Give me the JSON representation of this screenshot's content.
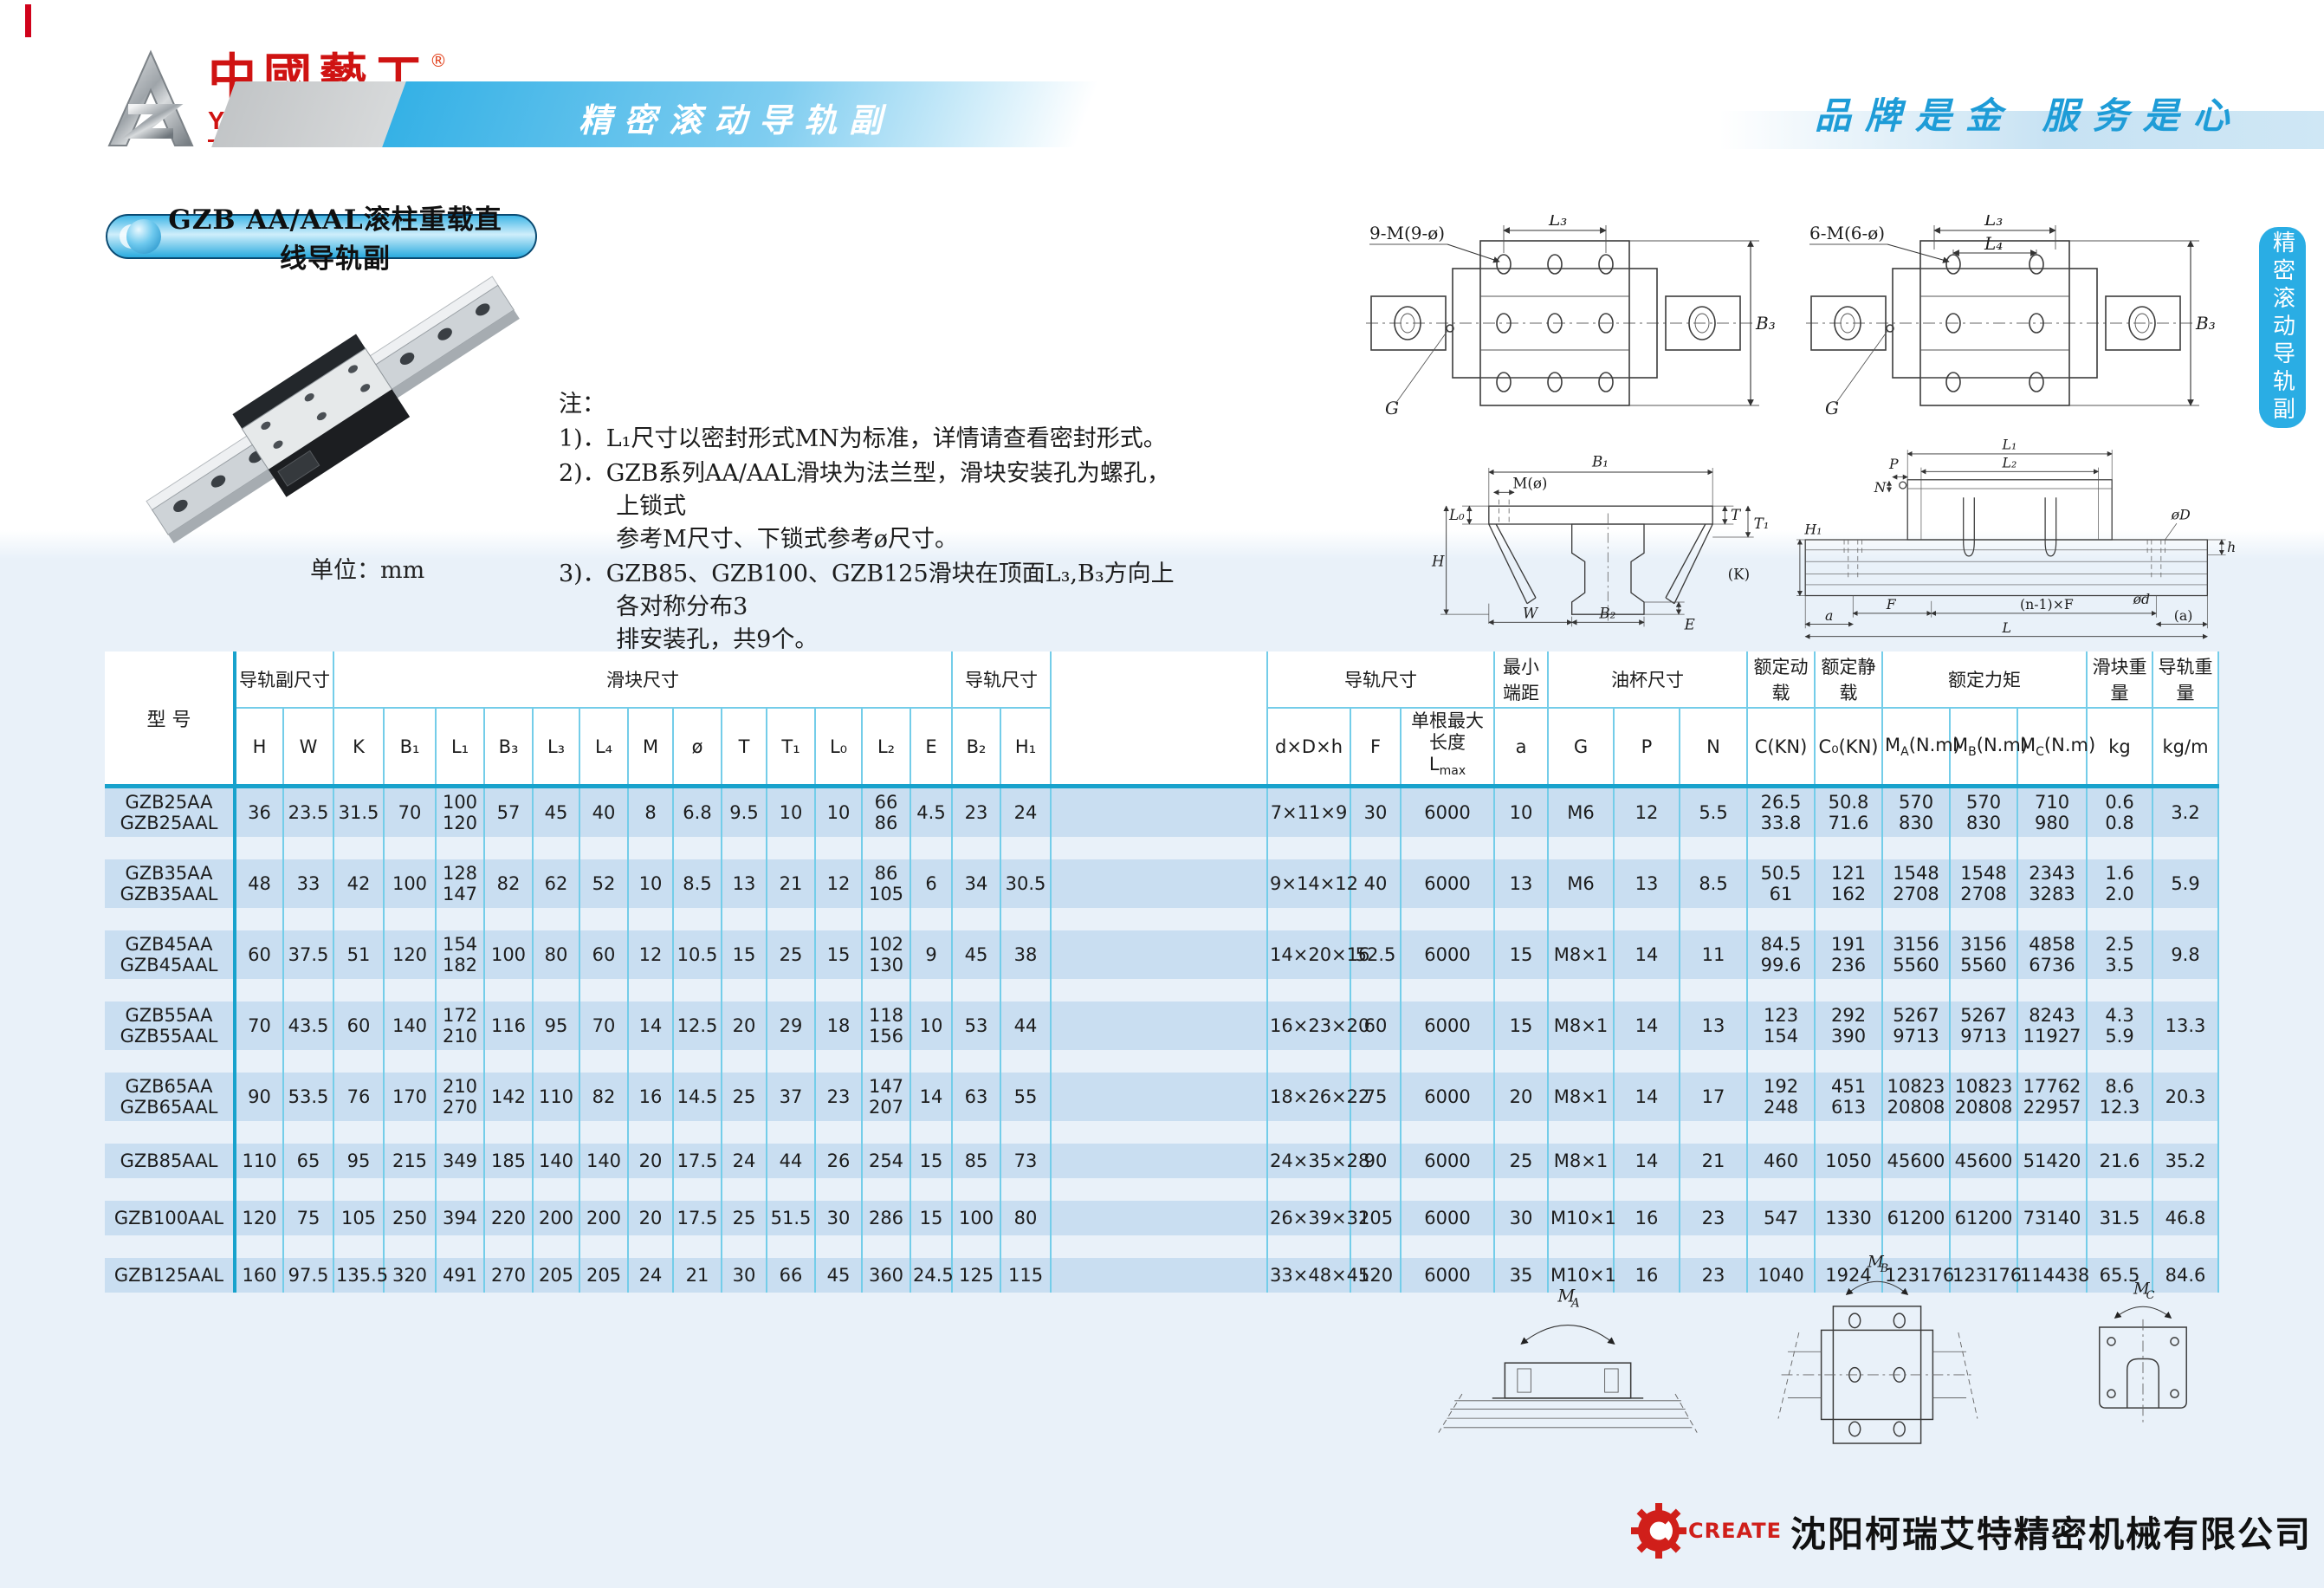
{
  "header": {
    "brand_cn": "中國藝工",
    "brand_en": "YIGONG CHINA",
    "reg": "®",
    "banner": "精密滚动导轨副",
    "slogan": "品牌是金 服务是心"
  },
  "section_title": "GZB AA/AAL滚柱重载直线导轨副",
  "unit_label": "单位：mm",
  "notes": {
    "heading": "注：",
    "items": [
      "1)．L₁尺寸以密封形式MN为标准，详情请查看密封形式。",
      "2)．GZB系列AA/AAL滑块为法兰型，滑块安装孔为螺孔，上锁式\n参考M尺寸、下锁式参考ø尺寸。",
      "3)．GZB85、GZB100、GZB125滑块在顶面L₃,B₃方向上各对称分布3\n排安装孔，共9个。"
    ]
  },
  "side_tab": {
    "label": "精密滚动导轨副"
  },
  "diagrams": {
    "plan_flange9": {
      "callout": "9-M(9-ø)",
      "l3": "L₃",
      "b3": "B₃",
      "g": "G"
    },
    "plan_flange6": {
      "callout": "6-M(6-ø)",
      "l3": "L₃",
      "l4": "L₄",
      "b3": "B₃",
      "g": "G"
    },
    "cross_section": {
      "b1": "B₁",
      "m": "M(ø)",
      "l0": "L₀",
      "h": "H",
      "w": "W",
      "b2": "B₂",
      "e": "E",
      "t": "T",
      "t1": "T₁",
      "k": "(K)"
    },
    "side_view": {
      "l1": "L₁",
      "l2": "L₂",
      "p": "P",
      "n": "N",
      "h1": "H₁",
      "od": "øD",
      "h": "h",
      "f": "F",
      "nf": "(n-1)×F",
      "a": "a",
      "od2": "ød",
      "a2": "(a)",
      "l": "L"
    },
    "moments": {
      "base": "M",
      "subs": [
        "A",
        "B",
        "C"
      ]
    }
  },
  "table": {
    "groups": {
      "model": "型 号",
      "assembly": "导轨副尺寸",
      "block": "滑块尺寸",
      "rail": "导轨尺寸",
      "rail2": "导轨尺寸",
      "min_end": "最小端距",
      "oil": "油杯尺寸",
      "dyn": "额定动载",
      "stat": "额定静载",
      "moment": "额定力矩",
      "block_w": "滑块重量",
      "rail_w": "导轨重量"
    },
    "cols": {
      "h": "H",
      "w": "W",
      "k": "K",
      "b1": "B₁",
      "l1": "L₁",
      "b3": "B₃",
      "l3": "L₃",
      "l4": "L₄",
      "m": "M",
      "dia": "ø",
      "t": "T",
      "t1": "T₁",
      "l0": "L₀",
      "l2": "L₂",
      "e": "E",
      "b2": "B₂",
      "h1": "H₁",
      "dxdxh": "d×D×h",
      "f": "F",
      "lmax_line1": "单根最大长度",
      "lmax_base": "L",
      "lmax_sub": "max",
      "a": "a",
      "g": "G",
      "p": "P",
      "n": "N",
      "c": "C(KN)",
      "c0": "C₀(KN)",
      "m_base": "M",
      "ma_sub": "A",
      "mb_sub": "B",
      "mc_sub": "C",
      "m_unit": "(N.m)",
      "kg": "kg",
      "kgm": "kg/m"
    },
    "rows": [
      {
        "model": "GZB25AA\nGZB25AAL",
        "values": [
          "36",
          "23.5",
          "31.5",
          "70",
          "100\n120",
          "57",
          "45",
          "40",
          "8",
          "6.8",
          "9.5",
          "10",
          "10",
          "66\n86",
          "4.5",
          "23",
          "24",
          "7×11×9",
          "30",
          "6000",
          "10",
          "M6",
          "12",
          "5.5",
          "26.5\n33.8",
          "50.8\n71.6",
          "570\n830",
          "570\n830",
          "710\n980",
          "0.6\n0.8",
          "3.2"
        ]
      },
      {
        "model": "GZB35AA\nGZB35AAL",
        "values": [
          "48",
          "33",
          "42",
          "100",
          "128\n147",
          "82",
          "62",
          "52",
          "10",
          "8.5",
          "13",
          "21",
          "12",
          "86\n105",
          "6",
          "34",
          "30.5",
          "9×14×12",
          "40",
          "6000",
          "13",
          "M6",
          "13",
          "8.5",
          "50.5\n61",
          "121\n162",
          "1548\n2708",
          "1548\n2708",
          "2343\n3283",
          "1.6\n2.0",
          "5.9"
        ]
      },
      {
        "model": "GZB45AA\nGZB45AAL",
        "values": [
          "60",
          "37.5",
          "51",
          "120",
          "154\n182",
          "100",
          "80",
          "60",
          "12",
          "10.5",
          "15",
          "25",
          "15",
          "102\n130",
          "9",
          "45",
          "38",
          "14×20×16",
          "52.5",
          "6000",
          "15",
          "M8×1",
          "14",
          "11",
          "84.5\n99.6",
          "191\n236",
          "3156\n5560",
          "3156\n5560",
          "4858\n6736",
          "2.5\n3.5",
          "9.8"
        ]
      },
      {
        "model": "GZB55AA\nGZB55AAL",
        "values": [
          "70",
          "43.5",
          "60",
          "140",
          "172\n210",
          "116",
          "95",
          "70",
          "14",
          "12.5",
          "20",
          "29",
          "18",
          "118\n156",
          "10",
          "53",
          "44",
          "16×23×20",
          "60",
          "6000",
          "15",
          "M8×1",
          "14",
          "13",
          "123\n154",
          "292\n390",
          "5267\n9713",
          "5267\n9713",
          "8243\n11927",
          "4.3\n5.9",
          "13.3"
        ]
      },
      {
        "model": "GZB65AA\nGZB65AAL",
        "values": [
          "90",
          "53.5",
          "76",
          "170",
          "210\n270",
          "142",
          "110",
          "82",
          "16",
          "14.5",
          "25",
          "37",
          "23",
          "147\n207",
          "14",
          "63",
          "55",
          "18×26×22",
          "75",
          "6000",
          "20",
          "M8×1",
          "14",
          "17",
          "192\n248",
          "451\n613",
          "10823\n20808",
          "10823\n20808",
          "17762\n22957",
          "8.6\n12.3",
          "20.3"
        ]
      },
      {
        "model": "GZB85AAL",
        "values": [
          "110",
          "65",
          "95",
          "215",
          "349",
          "185",
          "140",
          "140",
          "20",
          "17.5",
          "24",
          "44",
          "26",
          "254",
          "15",
          "85",
          "73",
          "24×35×28",
          "90",
          "6000",
          "25",
          "M8×1",
          "14",
          "21",
          "460",
          "1050",
          "45600",
          "45600",
          "51420",
          "21.6",
          "35.2"
        ]
      },
      {
        "model": "GZB100AAL",
        "values": [
          "120",
          "75",
          "105",
          "250",
          "394",
          "220",
          "200",
          "200",
          "20",
          "17.5",
          "25",
          "51.5",
          "30",
          "286",
          "15",
          "100",
          "80",
          "26×39×32",
          "105",
          "6000",
          "30",
          "M10×1",
          "16",
          "23",
          "547",
          "1330",
          "61200",
          "61200",
          "73140",
          "31.5",
          "46.8"
        ]
      },
      {
        "model": "GZB125AAL",
        "values": [
          "160",
          "97.5",
          "135.5",
          "320",
          "491",
          "270",
          "205",
          "205",
          "24",
          "21",
          "30",
          "66",
          "45",
          "360",
          "24.5",
          "125",
          "115",
          "33×48×45",
          "120",
          "6000",
          "35",
          "M10×1",
          "16",
          "23",
          "1040",
          "1924",
          "123176",
          "123176",
          "114438",
          "65.5",
          "84.6"
        ]
      }
    ]
  },
  "footer": {
    "brand": "CREATE",
    "company": "沈阳柯瑞艾特精密机械有限公司"
  }
}
